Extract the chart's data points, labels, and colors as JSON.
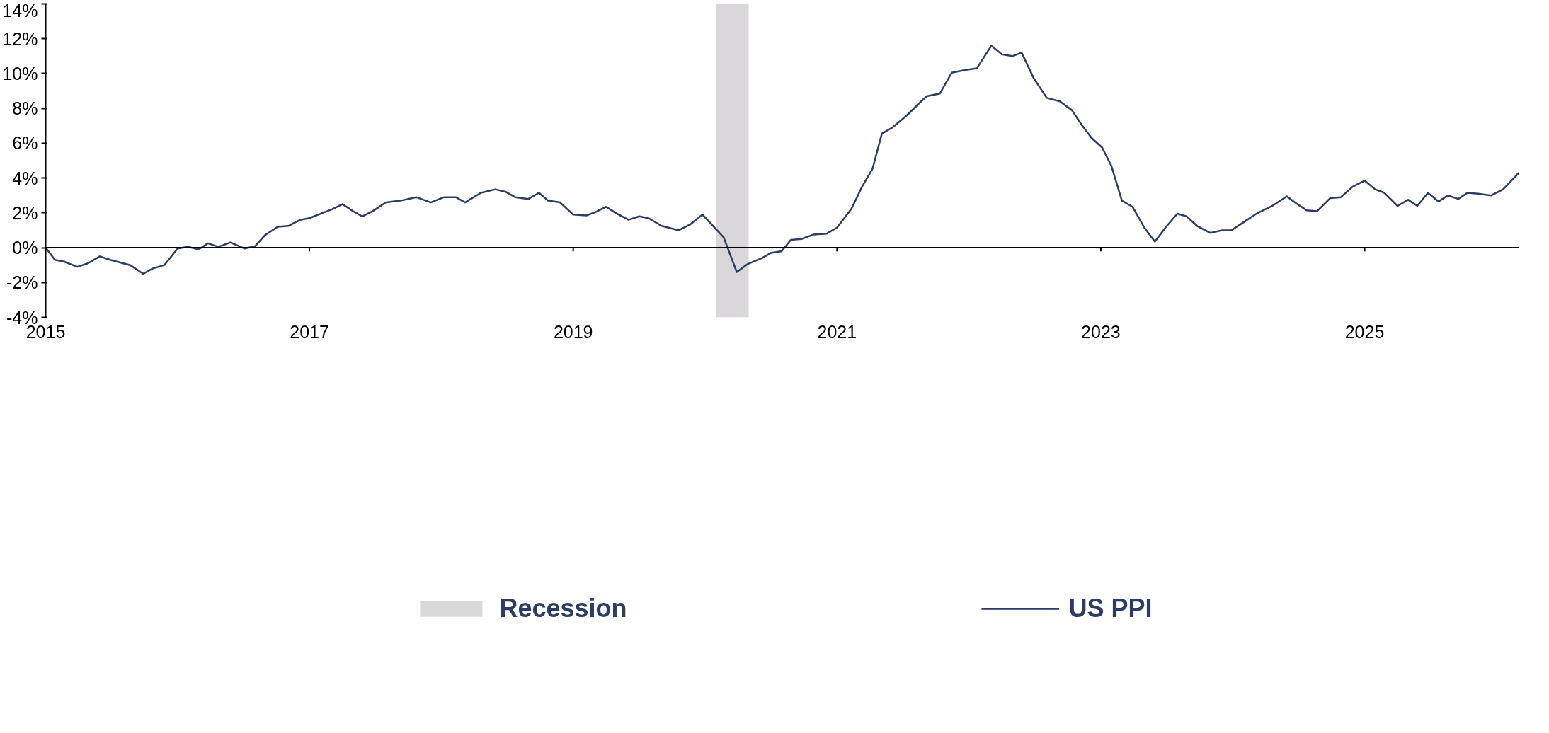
{
  "chart_data": {
    "type": "line",
    "x": [
      2015.0,
      2015.07,
      2015.14,
      2015.24,
      2015.32,
      2015.41,
      2015.49,
      2015.64,
      2015.74,
      2015.81,
      2015.9,
      2016.0,
      2016.08,
      2016.16,
      2016.23,
      2016.31,
      2016.4,
      2016.51,
      2016.59,
      2016.66,
      2016.76,
      2016.84,
      2016.93,
      2017.0,
      2017.1,
      2017.17,
      2017.25,
      2017.33,
      2017.4,
      2017.48,
      2017.58,
      2017.69,
      2017.81,
      2017.92,
      2018.02,
      2018.11,
      2018.18,
      2018.3,
      2018.41,
      2018.49,
      2018.56,
      2018.66,
      2018.74,
      2018.81,
      2018.9,
      2019.0,
      2019.1,
      2019.17,
      2019.25,
      2019.32,
      2019.42,
      2019.5,
      2019.57,
      2019.67,
      2019.8,
      2019.89,
      2019.98,
      2020.06,
      2020.14,
      2020.24,
      2020.32,
      2020.43,
      2020.5,
      2020.58,
      2020.65,
      2020.73,
      2020.82,
      2020.92,
      2021.0,
      2021.11,
      2021.19,
      2021.27,
      2021.34,
      2021.42,
      2021.53,
      2021.61,
      2021.68,
      2021.78,
      2021.87,
      2021.97,
      2022.06,
      2022.17,
      2022.25,
      2022.33,
      2022.4,
      2022.49,
      2022.59,
      2022.69,
      2022.78,
      2022.86,
      2022.93,
      2023.01,
      2023.08,
      2023.16,
      2023.24,
      2023.33,
      2023.41,
      2023.49,
      2023.58,
      2023.65,
      2023.73,
      2023.83,
      2023.92,
      2023.99,
      2024.07,
      2024.18,
      2024.3,
      2024.41,
      2024.49,
      2024.56,
      2024.64,
      2024.74,
      2024.82,
      2024.91,
      2025.0,
      2025.08,
      2025.15,
      2025.25,
      2025.33,
      2025.4,
      2025.48,
      2025.56,
      2025.63,
      2025.71,
      2025.78,
      2025.86,
      2025.96,
      2026.05,
      2026.17
    ],
    "series": [
      {
        "name": "US PPI",
        "color": "#2e3c64",
        "values": [
          0,
          -0.7,
          -0.8,
          -1.1,
          -0.9,
          -0.5,
          -0.7,
          -1.0,
          -1.5,
          -1.2,
          -1.0,
          -0.05,
          0.05,
          -0.1,
          0.25,
          0.05,
          0.3,
          -0.05,
          0.1,
          0.7,
          1.2,
          1.25,
          1.6,
          1.7,
          2.0,
          2.2,
          2.5,
          2.1,
          1.8,
          2.1,
          2.6,
          2.7,
          2.9,
          2.6,
          2.9,
          2.9,
          2.6,
          3.15,
          3.35,
          3.2,
          2.9,
          2.8,
          3.15,
          2.7,
          2.6,
          1.9,
          1.85,
          2.05,
          2.35,
          2.0,
          1.6,
          1.8,
          1.7,
          1.25,
          1.0,
          1.35,
          1.9,
          1.25,
          0.6,
          -1.4,
          -0.95,
          -0.6,
          -0.3,
          -0.2,
          0.45,
          0.5,
          0.75,
          0.8,
          1.15,
          2.25,
          3.5,
          4.55,
          6.55,
          6.9,
          7.6,
          8.2,
          8.7,
          8.85,
          10.05,
          10.2,
          10.3,
          11.6,
          11.1,
          11.0,
          11.2,
          9.75,
          8.6,
          8.4,
          7.9,
          7.0,
          6.3,
          5.75,
          4.7,
          2.7,
          2.35,
          1.15,
          0.35,
          1.15,
          1.95,
          1.8,
          1.25,
          0.85,
          1.0,
          1.0,
          1.4,
          1.95,
          2.4,
          2.95,
          2.5,
          2.15,
          2.1,
          2.85,
          2.9,
          3.5,
          3.85,
          3.35,
          3.15,
          2.4,
          2.75,
          2.4,
          3.15,
          2.65,
          3.0,
          2.8,
          3.15,
          3.1,
          3.0,
          3.35,
          4.3
        ]
      }
    ],
    "bands": [
      {
        "axis": "x",
        "from": 2020.08,
        "to": 2020.33,
        "label": "Recession",
        "color": "#d9d7da"
      }
    ],
    "ref_lines": [
      {
        "axis": "y",
        "value": 0,
        "color": "#000000"
      }
    ],
    "xlim": [
      2015,
      2026.17
    ],
    "xticks": [
      2015,
      2017,
      2019,
      2021,
      2023,
      2025
    ],
    "ylim": [
      -4,
      14
    ],
    "yticks": [
      {
        "value": -4,
        "label": "-4%"
      },
      {
        "value": -2,
        "label": "-2%"
      },
      {
        "value": 0,
        "label": "0%"
      },
      {
        "value": 2,
        "label": "2%"
      },
      {
        "value": 4,
        "label": "4%"
      },
      {
        "value": 6,
        "label": "6%"
      },
      {
        "value": 8,
        "label": "8%"
      },
      {
        "value": 10,
        "label": "10%"
      },
      {
        "value": 12,
        "label": "12%"
      },
      {
        "value": 14,
        "label": "14%"
      }
    ],
    "grid": false,
    "legend": "bottom",
    "line_style": "solid"
  }
}
